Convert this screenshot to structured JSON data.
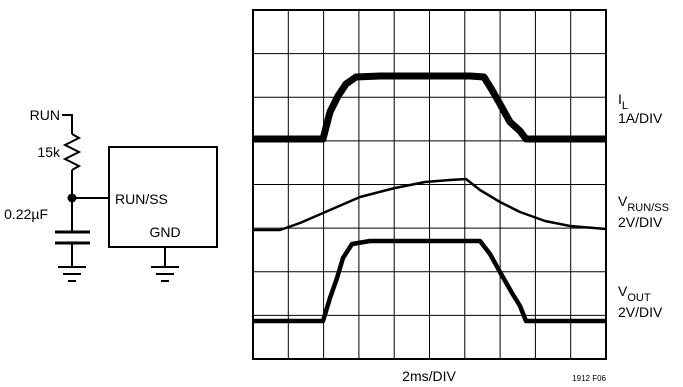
{
  "schematic": {
    "run_label": "RUN",
    "resistor_label": "15k",
    "capacitor_label": "0.22µF",
    "pin_runss_label": "RUN/SS",
    "pin_gnd_label": "GND"
  },
  "scope": {
    "time_scale": "2ms/DIV",
    "figure_code": "1912 F06",
    "channels": [
      {
        "name_main": "I",
        "name_sub": "L",
        "scale": "1A/DIV"
      },
      {
        "name_main": "V",
        "name_sub": "RUN/SS",
        "scale": "2V/DIV"
      },
      {
        "name_main": "V",
        "name_sub": "OUT",
        "scale": "2V/DIV"
      }
    ]
  }
}
